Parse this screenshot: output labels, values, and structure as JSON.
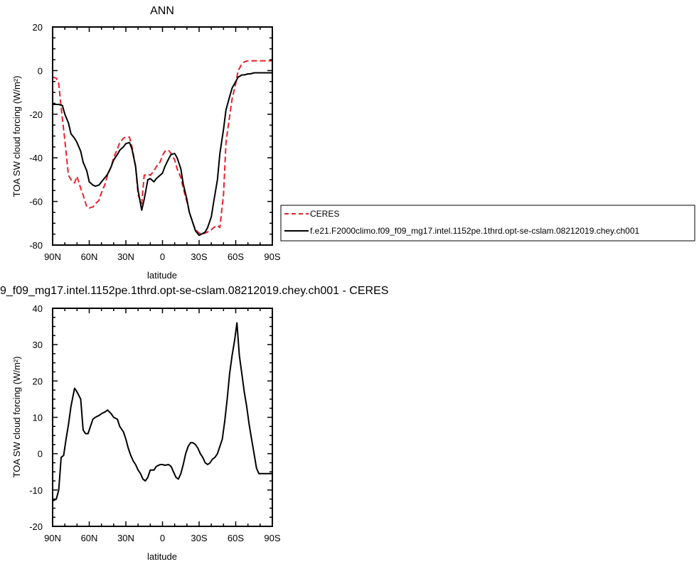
{
  "chart_data": [
    {
      "type": "line",
      "title": "ANN",
      "xlabel": "latitude",
      "ylabel": "TOA SW cloud forcing (W/m²)",
      "xlim": [
        90,
        -90
      ],
      "ylim": [
        -80,
        20
      ],
      "xticks": [
        90,
        60,
        30,
        0,
        -30,
        -60,
        -90
      ],
      "xtick_labels": [
        "90N",
        "60N",
        "30N",
        "0",
        "30S",
        "60S",
        "90S"
      ],
      "yticks": [
        20,
        0,
        -20,
        -40,
        -60,
        -80
      ],
      "ytick_labels": [
        "20",
        "0",
        "-20",
        "-40",
        "-60",
        "-80"
      ],
      "legend_position": "right",
      "series": [
        {
          "name": "CERES",
          "color": "#e8212a",
          "dash": "dashed",
          "x": [
            90,
            87,
            85,
            83,
            80,
            77,
            75,
            72,
            70,
            67,
            65,
            62,
            60,
            57,
            55,
            52,
            50,
            47,
            45,
            42,
            40,
            37,
            35,
            32,
            30,
            27,
            25,
            22,
            20,
            17,
            15,
            12,
            10,
            7,
            5,
            2,
            0,
            -2,
            -5,
            -7,
            -10,
            -12,
            -15,
            -17,
            -20,
            -22,
            -25,
            -27,
            -30,
            -32,
            -35,
            -37,
            -40,
            -42,
            -45,
            -47,
            -50,
            -52,
            -55,
            -57,
            -60,
            -62,
            -65,
            -67,
            -70,
            -72,
            -75,
            -77,
            -80,
            -82,
            -85,
            -87,
            -90
          ],
          "y": [
            -3,
            -3.5,
            -6,
            -17,
            -32,
            -48,
            -50,
            -51.5,
            -48.5,
            -54,
            -57,
            -62.5,
            -63,
            -62.5,
            -61,
            -59.5,
            -56,
            -52,
            -48,
            -44,
            -40,
            -36,
            -33,
            -31,
            -30.5,
            -30.5,
            -35,
            -44,
            -57,
            -61,
            -48,
            -47.5,
            -48,
            -46,
            -44,
            -42,
            -39,
            -37,
            -36.5,
            -38,
            -41,
            -45,
            -49,
            -54,
            -60,
            -65,
            -70,
            -73,
            -74.5,
            -75,
            -74.5,
            -74,
            -73,
            -72,
            -71,
            -72,
            -57,
            -33,
            -21,
            -13,
            -6,
            0,
            3,
            4,
            4.5,
            4.5,
            4.5,
            4.5,
            4.5,
            4.5,
            4.5,
            4.5,
            4.5
          ]
        },
        {
          "name": "f.e21.F2000climo.f09_f09_mg17.intel.1152pe.1thrd.opt-se-cslam.08212019.chey.ch001",
          "color": "#000000",
          "dash": "solid",
          "x": [
            90,
            87,
            85,
            82,
            80,
            77,
            75,
            72,
            70,
            67,
            65,
            62,
            60,
            57,
            55,
            52,
            50,
            47,
            45,
            42,
            40,
            37,
            35,
            32,
            30,
            27,
            25,
            22,
            20,
            17,
            15,
            12,
            10,
            7,
            5,
            2,
            0,
            -2,
            -5,
            -7,
            -10,
            -12,
            -15,
            -17,
            -20,
            -22,
            -25,
            -27,
            -30,
            -32,
            -35,
            -37,
            -40,
            -42,
            -45,
            -47,
            -50,
            -52,
            -55,
            -57,
            -60,
            -62,
            -65,
            -67,
            -70,
            -72,
            -75,
            -77,
            -80,
            -82,
            -85,
            -87,
            -90
          ],
          "y": [
            -15.5,
            -15.5,
            -15.5,
            -16,
            -20,
            -24,
            -29,
            -31,
            -33,
            -37,
            -42,
            -46,
            -51,
            -52.5,
            -53,
            -52.5,
            -51,
            -49,
            -47.5,
            -44,
            -41,
            -38.5,
            -36.5,
            -35,
            -33.5,
            -33,
            -36,
            -44,
            -55,
            -64,
            -59,
            -50,
            -49.5,
            -51,
            -49.5,
            -48,
            -47,
            -44,
            -40.5,
            -38.5,
            -38,
            -40,
            -45,
            -52,
            -59,
            -65,
            -70,
            -73.5,
            -75.5,
            -75,
            -74,
            -72,
            -67,
            -60,
            -50,
            -38,
            -27,
            -18,
            -12,
            -8,
            -5,
            -3,
            -2,
            -2,
            -1.5,
            -1.5,
            -1,
            -1,
            -1,
            -1,
            -1,
            -1,
            -1
          ]
        }
      ]
    },
    {
      "type": "line",
      "title": "9_f09_mg17.intel.1152pe.1thrd.opt-se-cslam.08212019.chey.ch001 - CERES",
      "xlabel": "latitude",
      "ylabel": "TOA SW cloud forcing (W/m²)",
      "xlim": [
        90,
        -90
      ],
      "ylim": [
        -20,
        40
      ],
      "xticks": [
        90,
        60,
        30,
        0,
        -30,
        -60,
        -90
      ],
      "xtick_labels": [
        "90N",
        "60N",
        "30N",
        "0",
        "30S",
        "60S",
        "90S"
      ],
      "yticks": [
        40,
        30,
        20,
        10,
        0,
        -10,
        -20
      ],
      "ytick_labels": [
        "40",
        "30",
        "20",
        "10",
        "0",
        "-10",
        "-20"
      ],
      "series": [
        {
          "color": "#000000",
          "dash": "solid",
          "x": [
            90,
            87,
            85,
            83,
            81,
            79,
            77,
            75,
            72,
            70,
            67,
            65,
            63,
            61,
            59,
            57,
            55,
            52,
            50,
            47,
            45,
            42,
            40,
            37,
            35,
            32,
            30,
            28,
            26,
            24,
            22,
            20,
            18,
            16,
            14,
            12,
            10,
            7,
            5,
            2,
            0,
            -2,
            -5,
            -7,
            -9,
            -11,
            -13,
            -15,
            -17,
            -19,
            -21,
            -23,
            -25,
            -27,
            -29,
            -31,
            -33,
            -35,
            -37,
            -39,
            -41,
            -43,
            -45,
            -47,
            -49,
            -51,
            -53,
            -55,
            -57,
            -59,
            -61,
            -63,
            -65,
            -67,
            -69,
            -71,
            -73,
            -75,
            -77,
            -79,
            -81,
            -83,
            -85,
            -87,
            -89,
            -90
          ],
          "y": [
            -13,
            -12.5,
            -10,
            -1,
            -0.5,
            4,
            8,
            13,
            18,
            17,
            15,
            6.5,
            5.5,
            5.5,
            7.5,
            9.5,
            10,
            10.5,
            11,
            11.5,
            12,
            11,
            10,
            9.5,
            7.5,
            6,
            4,
            1.5,
            -0.5,
            -2,
            -3,
            -4.5,
            -5.5,
            -7,
            -7.5,
            -6.5,
            -4.5,
            -4.5,
            -3.5,
            -3,
            -3,
            -3.2,
            -3,
            -3.5,
            -5,
            -6.5,
            -7,
            -5.5,
            -3,
            0,
            2,
            3,
            3,
            2.5,
            1.5,
            0,
            -1,
            -2.5,
            -3,
            -2.5,
            -1.5,
            -1,
            0,
            2,
            4,
            9,
            15,
            22,
            27,
            31,
            36,
            27,
            22,
            17,
            13,
            8,
            4,
            0,
            -4,
            -5.5,
            -5.5,
            -5.5,
            -5.5,
            -5.5,
            -5.5,
            -5.5
          ]
        }
      ]
    }
  ]
}
